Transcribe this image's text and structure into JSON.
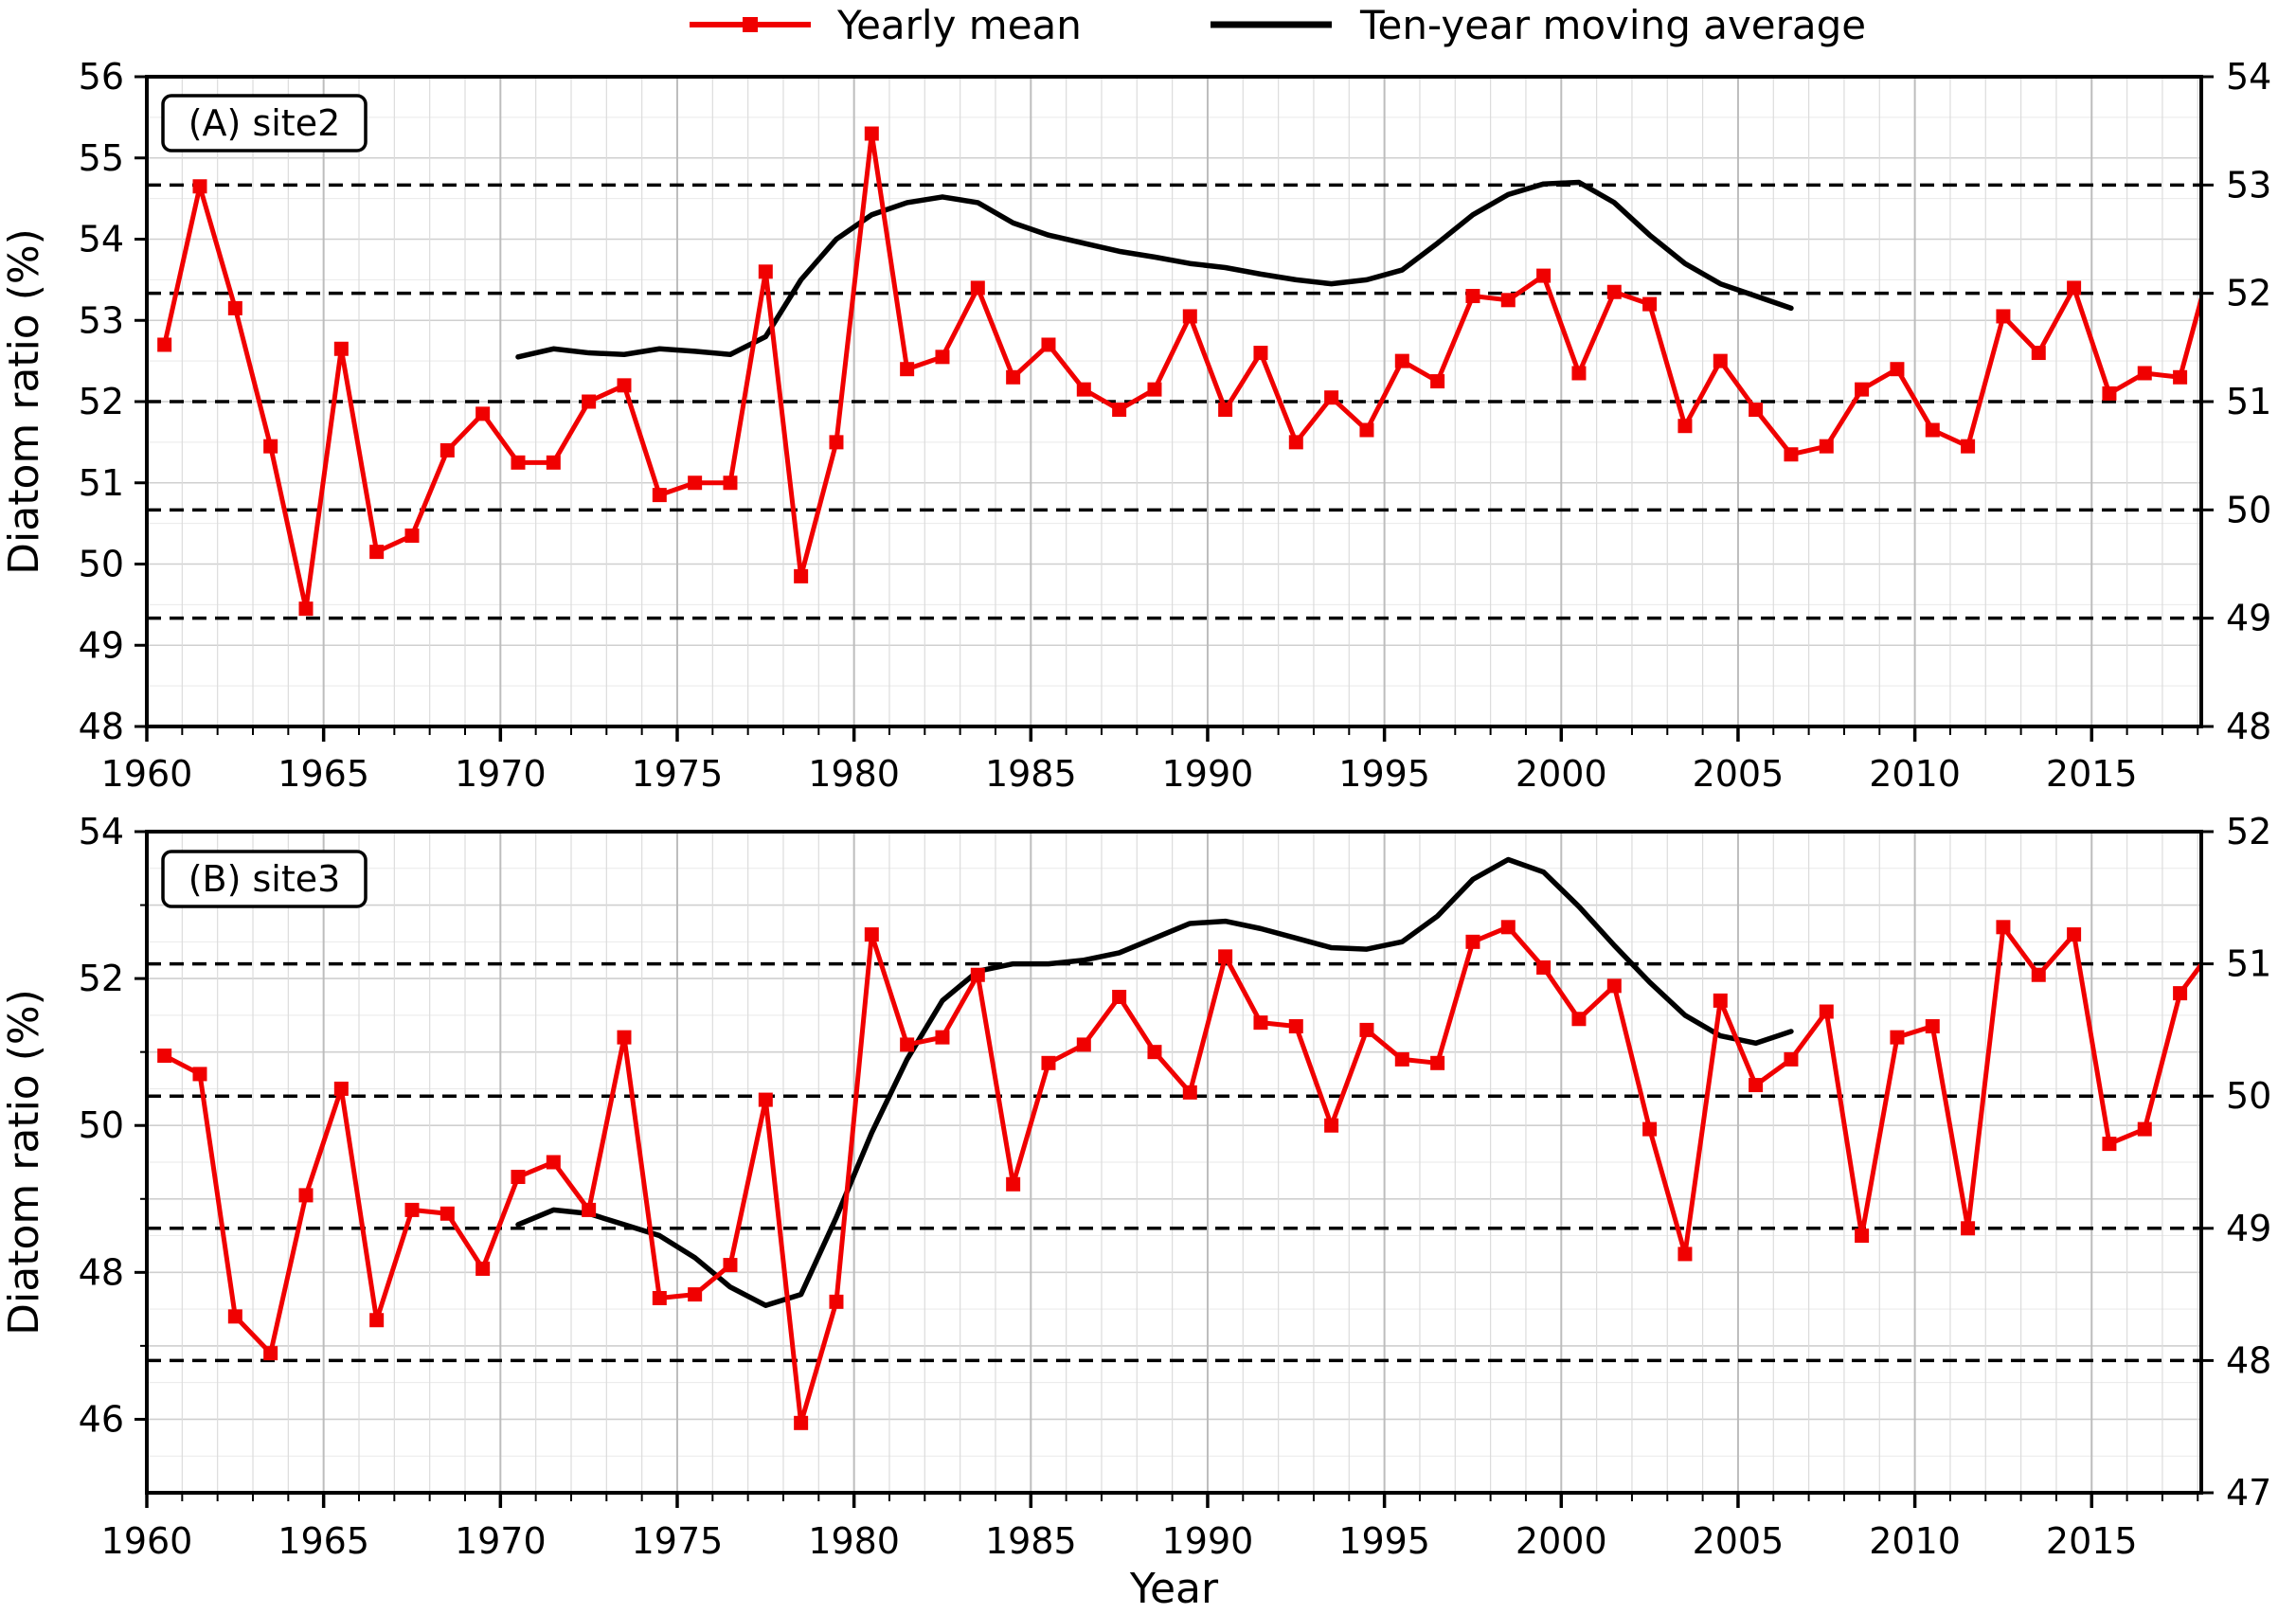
{
  "legend": {
    "items": [
      {
        "label": "Yearly mean",
        "color": "#f00000",
        "marker": "square"
      },
      {
        "label": "Ten-year moving average",
        "color": "#000000",
        "marker": "none"
      }
    ]
  },
  "xlabel": "Year",
  "ylabel": "Diatom ratio (%)",
  "chart_data": [
    {
      "type": "line",
      "panel_label": "(A) site2",
      "ylabel": "Diatom ratio (%)",
      "left_axis": {
        "lim": [
          48,
          56
        ],
        "ticks": [
          48,
          49,
          50,
          51,
          52,
          53,
          54,
          55,
          56
        ],
        "minor_ticks": []
      },
      "right_axis": {
        "lim": [
          48,
          54
        ],
        "ticks": [
          48,
          49,
          50,
          51,
          52,
          53,
          54
        ]
      },
      "dashed_gridlines_right_values": [
        49,
        50,
        51,
        52,
        53
      ],
      "x_major_ticks": [
        1960,
        1965,
        1970,
        1975,
        1980,
        1985,
        1990,
        1995,
        2000,
        2005,
        2010,
        2015
      ],
      "xlim": [
        1960,
        2018.1
      ],
      "years_start": 1960,
      "series": [
        {
          "name": "Yearly mean",
          "color": "#f00000",
          "marker": true,
          "x_start": 1960.5,
          "x_step": 1,
          "values": [
            52.7,
            54.65,
            53.15,
            51.45,
            49.45,
            52.65,
            50.15,
            50.35,
            51.4,
            51.85,
            51.25,
            51.25,
            52.0,
            52.2,
            50.85,
            51.0,
            51.0,
            53.6,
            49.85,
            51.5,
            55.3,
            52.4,
            52.55,
            53.4,
            52.3,
            52.7,
            52.15,
            51.9,
            52.15,
            53.05,
            51.9,
            52.6,
            51.5,
            52.05,
            51.65,
            52.5,
            52.25,
            53.3,
            53.25,
            53.55,
            52.35,
            53.35,
            53.2,
            51.7,
            52.5,
            51.9,
            51.35,
            51.45,
            52.15,
            52.4,
            51.65,
            51.45,
            53.05,
            52.6,
            53.4,
            52.1,
            52.35,
            52.3,
            53.9
          ]
        },
        {
          "name": "Ten-year moving average",
          "color": "#000000",
          "marker": false,
          "x_start": 1970.5,
          "x_step": 1,
          "values": [
            52.55,
            52.65,
            52.6,
            52.58,
            52.65,
            52.62,
            52.58,
            52.8,
            53.5,
            54.0,
            54.3,
            54.45,
            54.52,
            54.45,
            54.2,
            54.05,
            53.95,
            53.85,
            53.78,
            53.7,
            53.65,
            53.57,
            53.5,
            53.45,
            53.5,
            53.62,
            53.95,
            54.3,
            54.55,
            54.68,
            54.7,
            54.45,
            54.05,
            53.7,
            53.45,
            53.3,
            53.15
          ]
        }
      ]
    },
    {
      "type": "line",
      "panel_label": "(B) site3",
      "ylabel": "Diatom ratio (%)",
      "left_axis": {
        "lim": [
          45,
          54
        ],
        "ticks": [
          46,
          48,
          50,
          52,
          54
        ],
        "minor_ticks": [
          47,
          49,
          51,
          53
        ]
      },
      "right_axis": {
        "lim": [
          47,
          52
        ],
        "ticks": [
          47,
          48,
          49,
          50,
          51,
          52
        ]
      },
      "dashed_gridlines_right_values": [
        48,
        49,
        50,
        51
      ],
      "x_major_ticks": [
        1960,
        1965,
        1970,
        1975,
        1980,
        1985,
        1990,
        1995,
        2000,
        2005,
        2010,
        2015
      ],
      "xlim": [
        1960,
        2018.1
      ],
      "years_start": 1960,
      "series": [
        {
          "name": "Yearly mean",
          "color": "#f00000",
          "marker": true,
          "x_start": 1960.5,
          "x_step": 1,
          "values": [
            50.95,
            50.7,
            47.4,
            46.9,
            49.05,
            50.5,
            47.35,
            48.85,
            48.8,
            48.05,
            49.3,
            49.5,
            48.85,
            51.2,
            47.65,
            47.7,
            48.1,
            50.35,
            45.95,
            47.6,
            52.6,
            51.1,
            51.2,
            52.05,
            49.2,
            50.85,
            51.1,
            51.75,
            51.0,
            50.45,
            52.3,
            51.4,
            51.35,
            50.0,
            51.3,
            50.9,
            50.85,
            52.5,
            52.7,
            52.15,
            51.45,
            51.9,
            49.95,
            48.25,
            51.7,
            50.55,
            50.9,
            51.55,
            48.5,
            51.2,
            51.35,
            48.6,
            52.7,
            52.05,
            52.6,
            49.75,
            49.95,
            51.8,
            52.45
          ]
        },
        {
          "name": "Ten-year moving average",
          "color": "#000000",
          "marker": false,
          "x_start": 1970.5,
          "x_step": 1,
          "values": [
            48.65,
            48.85,
            48.8,
            48.65,
            48.5,
            48.2,
            47.8,
            47.55,
            47.7,
            48.75,
            49.9,
            50.9,
            51.7,
            52.1,
            52.2,
            52.2,
            52.25,
            52.35,
            52.55,
            52.75,
            52.78,
            52.68,
            52.55,
            52.42,
            52.4,
            52.5,
            52.85,
            53.35,
            53.62,
            53.45,
            52.98,
            52.45,
            51.95,
            51.5,
            51.22,
            51.12,
            51.28
          ]
        }
      ]
    }
  ]
}
